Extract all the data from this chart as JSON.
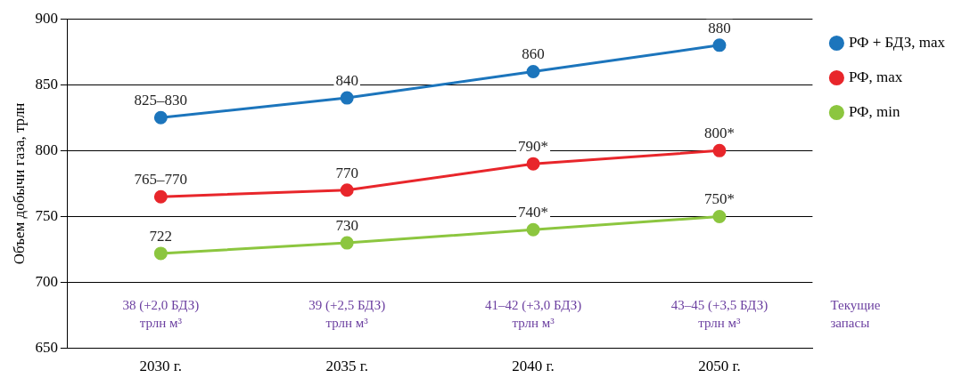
{
  "chart_data": {
    "type": "line",
    "ylabel": "Объем добычи газа, трлн",
    "categories": [
      "2030 г.",
      "2035 г.",
      "2040 г.",
      "2050 г."
    ],
    "ylim": [
      650,
      900
    ],
    "yticks": [
      650,
      700,
      750,
      800,
      850,
      900
    ],
    "grid": "y",
    "legend": "right",
    "marker": "circle",
    "line_style": "solid",
    "series": [
      {
        "name": "РФ + БДЗ, max",
        "color": "#1c75bc",
        "values": [
          825,
          840,
          860,
          880
        ],
        "value_labels": [
          "825–830",
          "840",
          "860",
          "880"
        ]
      },
      {
        "name": "РФ, max",
        "color": "#e8262b",
        "values": [
          765,
          770,
          790,
          800
        ],
        "value_labels": [
          "765–770",
          "770",
          "790*",
          "800*"
        ]
      },
      {
        "name": "РФ, min",
        "color": "#8cc63f",
        "values": [
          722,
          730,
          740,
          750
        ],
        "value_labels": [
          "722",
          "730",
          "740*",
          "750*"
        ]
      }
    ],
    "annotations": [
      "38 (+2,0 БДЗ)\nтрлн м³",
      "39 (+2,5 БДЗ)\nтрлн м³",
      "41–42 (+3,0 БДЗ)\nтрлн м³",
      "43–45 (+3,5 БДЗ)\nтрлн м³",
      "Текущие\nзапасы"
    ]
  }
}
